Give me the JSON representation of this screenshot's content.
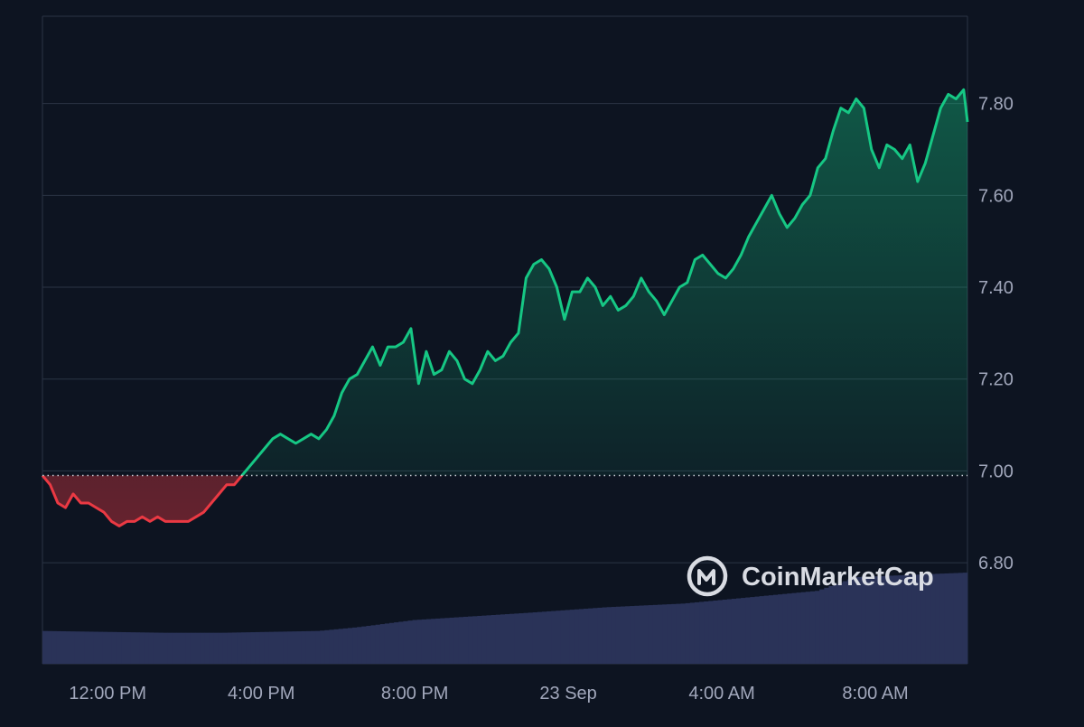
{
  "watermark": {
    "brand": "CoinMarketCap"
  },
  "colors": {
    "background": "#0d1421",
    "grid": "#2b3445",
    "up_line": "#16c784",
    "down_line": "#ea3943",
    "volume": "#2a3358",
    "baseline": "#c8ccd4",
    "tick_text": "#a1a7bb"
  },
  "chart_data": {
    "type": "area",
    "title": "",
    "xlabel": "",
    "ylabel": "",
    "ylim": [
      6.58,
      7.99
    ],
    "y_ticks": [
      "6.80",
      "7.00",
      "7.20",
      "7.40",
      "7.60",
      "7.80"
    ],
    "x_ticks": [
      "12:00 PM",
      "4:00 PM",
      "8:00 PM",
      "23 Sep",
      "4:00 AM",
      "8:00 AM"
    ],
    "x_tick_hours": [
      12,
      16,
      20,
      24,
      28,
      32
    ],
    "x_range_hours": [
      10.3,
      34.4
    ],
    "baseline_value": 6.99,
    "grid": true,
    "price": {
      "name": "Price",
      "points": [
        [
          10.3,
          6.99
        ],
        [
          10.5,
          6.97
        ],
        [
          10.7,
          6.93
        ],
        [
          10.9,
          6.92
        ],
        [
          11.1,
          6.95
        ],
        [
          11.3,
          6.93
        ],
        [
          11.5,
          6.93
        ],
        [
          11.7,
          6.92
        ],
        [
          11.9,
          6.91
        ],
        [
          12.1,
          6.89
        ],
        [
          12.3,
          6.88
        ],
        [
          12.5,
          6.89
        ],
        [
          12.7,
          6.89
        ],
        [
          12.9,
          6.9
        ],
        [
          13.1,
          6.89
        ],
        [
          13.3,
          6.9
        ],
        [
          13.5,
          6.89
        ],
        [
          13.7,
          6.89
        ],
        [
          13.9,
          6.89
        ],
        [
          14.1,
          6.89
        ],
        [
          14.3,
          6.9
        ],
        [
          14.5,
          6.91
        ],
        [
          14.7,
          6.93
        ],
        [
          14.9,
          6.95
        ],
        [
          15.1,
          6.97
        ],
        [
          15.3,
          6.97
        ],
        [
          15.5,
          6.99
        ],
        [
          15.7,
          7.01
        ],
        [
          15.9,
          7.03
        ],
        [
          16.1,
          7.05
        ],
        [
          16.3,
          7.07
        ],
        [
          16.5,
          7.08
        ],
        [
          16.7,
          7.07
        ],
        [
          16.9,
          7.06
        ],
        [
          17.1,
          7.07
        ],
        [
          17.3,
          7.08
        ],
        [
          17.5,
          7.07
        ],
        [
          17.7,
          7.09
        ],
        [
          17.9,
          7.12
        ],
        [
          18.1,
          7.17
        ],
        [
          18.3,
          7.2
        ],
        [
          18.5,
          7.21
        ],
        [
          18.7,
          7.24
        ],
        [
          18.9,
          7.27
        ],
        [
          19.1,
          7.23
        ],
        [
          19.3,
          7.27
        ],
        [
          19.5,
          7.27
        ],
        [
          19.7,
          7.28
        ],
        [
          19.9,
          7.31
        ],
        [
          20.1,
          7.19
        ],
        [
          20.3,
          7.26
        ],
        [
          20.5,
          7.21
        ],
        [
          20.7,
          7.22
        ],
        [
          20.9,
          7.26
        ],
        [
          21.1,
          7.24
        ],
        [
          21.3,
          7.2
        ],
        [
          21.5,
          7.19
        ],
        [
          21.7,
          7.22
        ],
        [
          21.9,
          7.26
        ],
        [
          22.1,
          7.24
        ],
        [
          22.3,
          7.25
        ],
        [
          22.5,
          7.28
        ],
        [
          22.7,
          7.3
        ],
        [
          22.9,
          7.42
        ],
        [
          23.1,
          7.45
        ],
        [
          23.3,
          7.46
        ],
        [
          23.5,
          7.44
        ],
        [
          23.7,
          7.4
        ],
        [
          23.9,
          7.33
        ],
        [
          24.1,
          7.39
        ],
        [
          24.3,
          7.39
        ],
        [
          24.5,
          7.42
        ],
        [
          24.7,
          7.4
        ],
        [
          24.9,
          7.36
        ],
        [
          25.1,
          7.38
        ],
        [
          25.3,
          7.35
        ],
        [
          25.5,
          7.36
        ],
        [
          25.7,
          7.38
        ],
        [
          25.9,
          7.42
        ],
        [
          26.1,
          7.39
        ],
        [
          26.3,
          7.37
        ],
        [
          26.5,
          7.34
        ],
        [
          26.7,
          7.37
        ],
        [
          26.9,
          7.4
        ],
        [
          27.1,
          7.41
        ],
        [
          27.3,
          7.46
        ],
        [
          27.5,
          7.47
        ],
        [
          27.7,
          7.45
        ],
        [
          27.9,
          7.43
        ],
        [
          28.1,
          7.42
        ],
        [
          28.3,
          7.44
        ],
        [
          28.5,
          7.47
        ],
        [
          28.7,
          7.51
        ],
        [
          28.9,
          7.54
        ],
        [
          29.1,
          7.57
        ],
        [
          29.3,
          7.6
        ],
        [
          29.5,
          7.56
        ],
        [
          29.7,
          7.53
        ],
        [
          29.9,
          7.55
        ],
        [
          30.1,
          7.58
        ],
        [
          30.3,
          7.6
        ],
        [
          30.5,
          7.66
        ],
        [
          30.7,
          7.68
        ],
        [
          30.9,
          7.74
        ],
        [
          31.1,
          7.79
        ],
        [
          31.3,
          7.78
        ],
        [
          31.5,
          7.81
        ],
        [
          31.7,
          7.79
        ],
        [
          31.9,
          7.7
        ],
        [
          32.1,
          7.66
        ],
        [
          32.3,
          7.71
        ],
        [
          32.5,
          7.7
        ],
        [
          32.7,
          7.68
        ],
        [
          32.9,
          7.71
        ],
        [
          33.1,
          7.63
        ],
        [
          33.3,
          7.67
        ],
        [
          33.5,
          7.73
        ],
        [
          33.7,
          7.79
        ],
        [
          33.9,
          7.82
        ],
        [
          34.1,
          7.81
        ],
        [
          34.3,
          7.83
        ],
        [
          34.4,
          7.76
        ]
      ]
    },
    "volume": {
      "name": "Volume",
      "points": [
        [
          10.3,
          0.36
        ],
        [
          13.5,
          0.34
        ],
        [
          15.0,
          0.34
        ],
        [
          17.5,
          0.36
        ],
        [
          18.5,
          0.4
        ],
        [
          20.0,
          0.48
        ],
        [
          23.0,
          0.56
        ],
        [
          25.0,
          0.62
        ],
        [
          27.0,
          0.66
        ],
        [
          29.0,
          0.74
        ],
        [
          30.5,
          0.8
        ],
        [
          31.5,
          0.95
        ],
        [
          34.4,
          1.0
        ]
      ]
    }
  }
}
